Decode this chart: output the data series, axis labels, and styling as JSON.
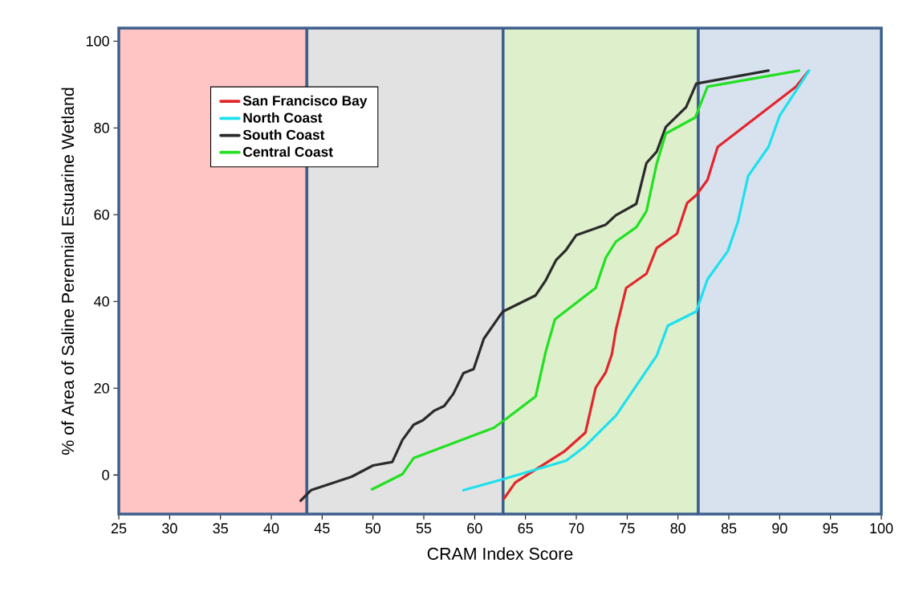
{
  "chart_data": {
    "type": "line",
    "xlabel": "CRAM Index Score",
    "ylabel": "% of Area of Saline Perennial Estuarine Wetland",
    "xlim": [
      25,
      100
    ],
    "ylim": [
      -9,
      103
    ],
    "xticks": [
      25,
      30,
      35,
      40,
      45,
      50,
      55,
      60,
      65,
      70,
      75,
      80,
      85,
      90,
      95,
      100
    ],
    "yticks": [
      0,
      20,
      40,
      60,
      80,
      100
    ],
    "legend": "top left",
    "marker": "none",
    "line_style": "solid",
    "bands": [
      {
        "axis": "x",
        "from": 25,
        "to": 43.5,
        "color": "#ffc4c4"
      },
      {
        "axis": "x",
        "from": 43.5,
        "to": 62.8,
        "color": "#e2e2e2"
      },
      {
        "axis": "x",
        "from": 62.8,
        "to": 82,
        "color": "#ddf0cb"
      },
      {
        "axis": "x",
        "from": 82,
        "to": 100,
        "color": "#d8e2ef"
      }
    ],
    "series": [
      {
        "name": "San Francisco Bay",
        "color": "#e2262c",
        "x": [
          62.9,
          64.0,
          68.8,
          70.9,
          71.9,
          72.9,
          73.5,
          73.9,
          74.9,
          76.9,
          77.9,
          79.9,
          80.9,
          81.8,
          82.9,
          83.9,
          91.6,
          92.8
        ],
        "values": [
          -5.4,
          -1.7,
          5.4,
          9.8,
          20.1,
          23.7,
          27.9,
          33.5,
          43.1,
          46.4,
          52.3,
          55.6,
          62.7,
          64.5,
          68.0,
          75.6,
          89.5,
          93.0
        ]
      },
      {
        "name": "North Coast",
        "color": "#1ee0ee",
        "x": [
          58.9,
          62.6,
          69.0,
          70.9,
          73.9,
          77.9,
          79.0,
          81.8,
          82.9,
          84.9,
          85.9,
          86.9,
          88.9,
          90.0,
          92.9
        ],
        "values": [
          -3.5,
          -1.1,
          3.3,
          6.7,
          13.7,
          27.5,
          34.4,
          37.7,
          45.1,
          51.6,
          58.4,
          68.9,
          75.6,
          82.8,
          93.2
        ]
      },
      {
        "name": "South Coast",
        "color": "#2b2b2b",
        "x": [
          42.9,
          43.9,
          47.9,
          50.0,
          51.9,
          52.9,
          54.0,
          54.9,
          56.0,
          57.0,
          57.9,
          58.9,
          59.9,
          60.9,
          62.5,
          62.8,
          66.0,
          67.0,
          68.0,
          69.0,
          70.0,
          72.9,
          73.9,
          75.9,
          76.9,
          77.9,
          78.8,
          80.8,
          81.8,
          88.9
        ],
        "values": [
          -5.9,
          -3.5,
          -0.4,
          2.2,
          3.0,
          8.1,
          11.6,
          12.6,
          14.8,
          15.9,
          18.7,
          23.5,
          24.4,
          31.4,
          36.8,
          37.7,
          41.4,
          44.9,
          49.5,
          51.9,
          55.3,
          57.7,
          59.9,
          62.5,
          71.9,
          74.5,
          80.2,
          84.8,
          90.2,
          93.2
        ]
      },
      {
        "name": "Central Coast",
        "color": "#22e022",
        "x": [
          49.9,
          52.9,
          54.0,
          61.9,
          62.9,
          66.0,
          67.0,
          67.9,
          71.9,
          72.9,
          73.9,
          75.9,
          76.9,
          77.9,
          78.8,
          81.7,
          82.9,
          91.9
        ],
        "values": [
          -3.3,
          0.2,
          3.9,
          10.9,
          12.6,
          18.1,
          28.5,
          35.9,
          43.1,
          50.1,
          53.8,
          57.1,
          60.8,
          71.7,
          78.7,
          82.4,
          89.5,
          93.2
        ]
      }
    ]
  }
}
